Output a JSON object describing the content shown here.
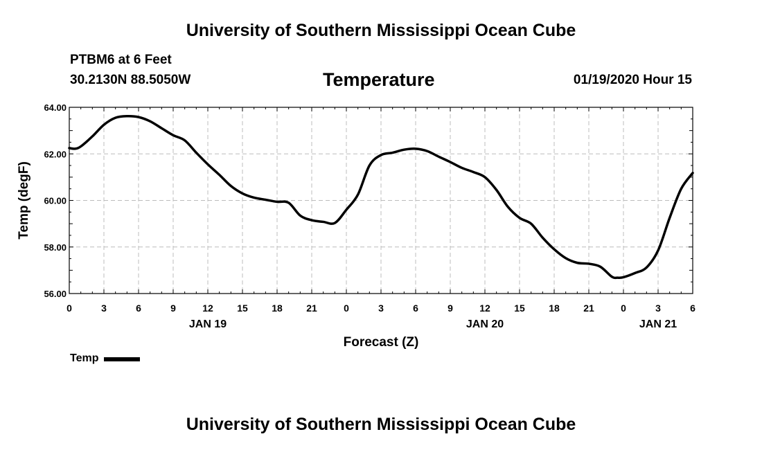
{
  "header": {
    "title": "University of Southern Mississippi Ocean Cube",
    "station": "PTBM6 at 6 Feet",
    "coords": "30.2130N 88.5050W",
    "timestamp": "01/19/2020 Hour 15"
  },
  "footer": {
    "title": "University of Southern Mississippi Ocean Cube"
  },
  "legend": {
    "label": "Temp"
  },
  "chart_data": {
    "type": "line",
    "title": "Temperature",
    "xlabel": "Forecast (Z)",
    "ylabel": "Temp (degF)",
    "xlim": [
      0,
      54
    ],
    "ylim": [
      56,
      64
    ],
    "yticks": [
      56,
      58,
      60,
      62,
      64
    ],
    "ytick_labels": [
      "56.00",
      "58.00",
      "60.00",
      "62.00",
      "64.00"
    ],
    "xticks": [
      0,
      3,
      6,
      9,
      12,
      15,
      18,
      21,
      24,
      27,
      30,
      33,
      36,
      39,
      42,
      45,
      48,
      51,
      54
    ],
    "xtick_labels": [
      "0",
      "3",
      "6",
      "9",
      "12",
      "15",
      "18",
      "21",
      "0",
      "3",
      "6",
      "9",
      "12",
      "15",
      "18",
      "21",
      "0",
      "3",
      "6"
    ],
    "day_labels": [
      {
        "x": 12,
        "label": "JAN 19"
      },
      {
        "x": 36,
        "label": "JAN 20"
      },
      {
        "x": 51,
        "label": "JAN 21"
      }
    ],
    "grid": true,
    "series": [
      {
        "name": "Temp",
        "color": "#000000",
        "x": [
          0,
          0.5,
          1,
          2,
          3,
          4,
          5,
          6,
          7,
          8,
          9,
          10,
          11,
          12,
          13,
          14,
          15,
          16,
          17,
          18,
          19,
          20,
          21,
          22,
          23,
          24,
          25,
          26,
          27,
          28,
          29,
          30,
          31,
          32,
          33,
          34,
          35,
          36,
          37,
          38,
          39,
          40,
          41,
          42,
          43,
          44,
          45,
          46,
          47,
          47.5,
          48,
          49,
          50,
          51,
          52,
          53,
          54
        ],
        "values": [
          62.25,
          62.22,
          62.32,
          62.75,
          63.25,
          63.55,
          63.62,
          63.58,
          63.4,
          63.1,
          62.8,
          62.58,
          62.05,
          61.55,
          61.1,
          60.62,
          60.3,
          60.12,
          60.03,
          59.94,
          59.9,
          59.35,
          59.15,
          59.08,
          59.03,
          59.6,
          60.25,
          61.5,
          61.95,
          62.05,
          62.18,
          62.22,
          62.12,
          61.88,
          61.65,
          61.4,
          61.22,
          61.0,
          60.45,
          59.72,
          59.25,
          59.0,
          58.4,
          57.9,
          57.52,
          57.32,
          57.28,
          57.15,
          56.72,
          56.68,
          56.7,
          56.88,
          57.12,
          57.85,
          59.25,
          60.5,
          61.18
        ]
      }
    ]
  }
}
